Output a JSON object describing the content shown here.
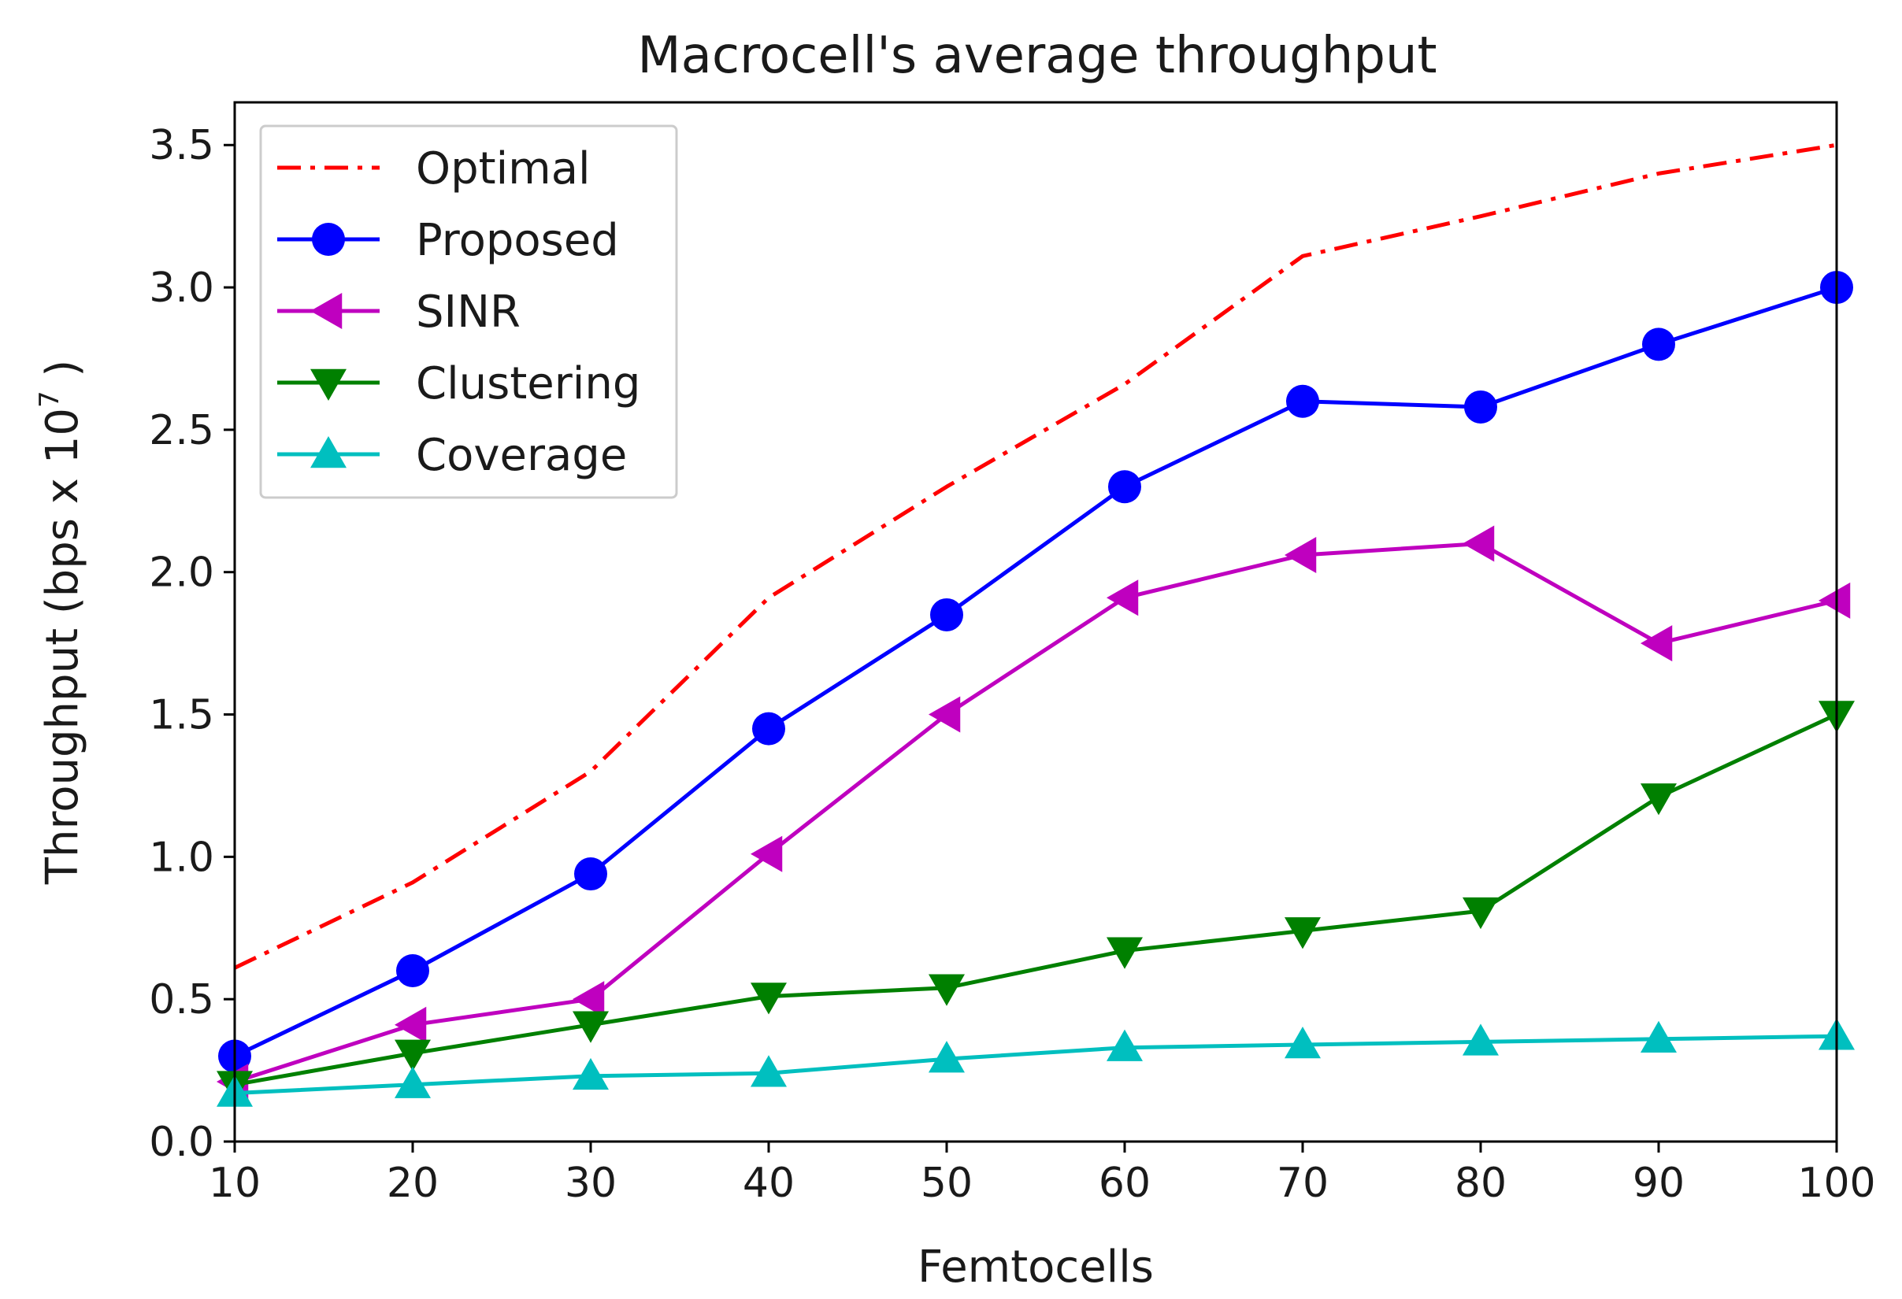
{
  "chart_data": {
    "type": "line",
    "title": "Macrocell's average throughput",
    "xlabel": "Femtocells",
    "ylabel": {
      "prefix": "Throughput (bps x 10",
      "exponent": "7",
      "suffix": " )"
    },
    "xlim": [
      10,
      100
    ],
    "ylim": [
      0,
      3.65
    ],
    "xticks": [
      10,
      20,
      30,
      40,
      50,
      60,
      70,
      80,
      90,
      100
    ],
    "xtick_labels": [
      "10",
      "20",
      "30",
      "40",
      "50",
      "60",
      "70",
      "80",
      "90",
      "100"
    ],
    "yticks": [
      0,
      0.5,
      1,
      1.5,
      2,
      2.5,
      3,
      3.5
    ],
    "ytick_labels": [
      "0.0",
      "0.5",
      "1.0",
      "1.5",
      "2.0",
      "2.5",
      "3.0",
      "3.5"
    ],
    "grid": false,
    "legend_position": "top-left",
    "x": [
      10,
      20,
      30,
      40,
      50,
      60,
      70,
      80,
      90,
      100
    ],
    "series": [
      {
        "name": "Optimal",
        "color": "#ff0000",
        "line_style": "dashdot",
        "marker": "none",
        "values": [
          0.61,
          0.91,
          1.3,
          1.91,
          2.3,
          2.66,
          3.11,
          3.25,
          3.4,
          3.5
        ]
      },
      {
        "name": "Proposed",
        "color": "#0000ff",
        "line_style": "solid",
        "marker": "circle",
        "values": [
          0.3,
          0.6,
          0.94,
          1.45,
          1.85,
          2.3,
          2.6,
          2.58,
          2.8,
          3.0
        ]
      },
      {
        "name": "SINR",
        "color": "#bf00bf",
        "line_style": "solid",
        "marker": "triangle-left",
        "values": [
          0.21,
          0.41,
          0.5,
          1.01,
          1.5,
          1.91,
          2.06,
          2.1,
          1.75,
          1.9
        ]
      },
      {
        "name": "Clustering",
        "color": "#008000",
        "line_style": "solid",
        "marker": "triangle-down",
        "values": [
          0.2,
          0.31,
          0.41,
          0.51,
          0.54,
          0.67,
          0.74,
          0.81,
          1.21,
          1.5
        ]
      },
      {
        "name": "Coverage",
        "color": "#00bfbf",
        "line_style": "solid",
        "marker": "triangle-up",
        "values": [
          0.17,
          0.2,
          0.23,
          0.24,
          0.29,
          0.33,
          0.34,
          0.35,
          0.36,
          0.37
        ]
      }
    ]
  }
}
